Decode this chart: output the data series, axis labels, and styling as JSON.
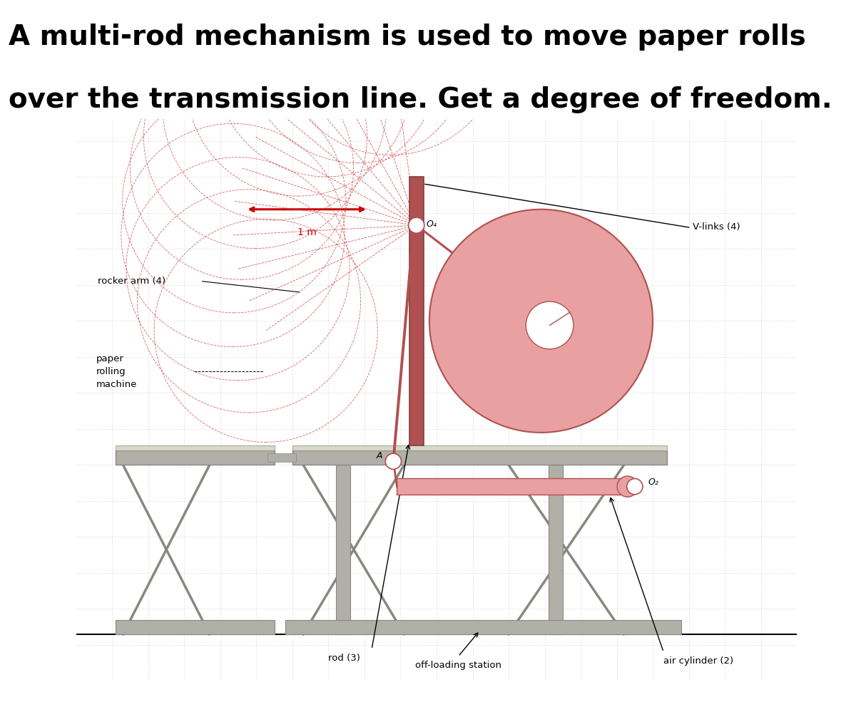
{
  "title_line1": "A multi-rod mechanism is used to move paper rolls",
  "title_line2": "over the transmission line. Get a degree of freedom.",
  "title_fontsize": 28,
  "title_fontweight": "bold",
  "bg_color": "#ffffff",
  "colors": {
    "grid_color": "#c8c8c8",
    "red_arrow": "#cc0000",
    "pink_fill": "#e8a0a0",
    "pink_dark": "#c06060",
    "dark_pink": "#b05050",
    "gray_structure": "#b0b0a8",
    "dark_gray": "#888880",
    "dark_line": "#404040",
    "rocker_arcs": "#cc4444"
  },
  "labels": {
    "vlinks": "V-links (4)",
    "rocker_arm": "rocker arm (4)",
    "paper_rolling": "paper\nrolling\nmachine",
    "rod": "rod (3)",
    "offloading": "off-loading station",
    "air_cylinder": "air cylinder (2)",
    "scale_label": "1 m",
    "O4": "O₄",
    "A": "A",
    "O2": "O₂"
  }
}
